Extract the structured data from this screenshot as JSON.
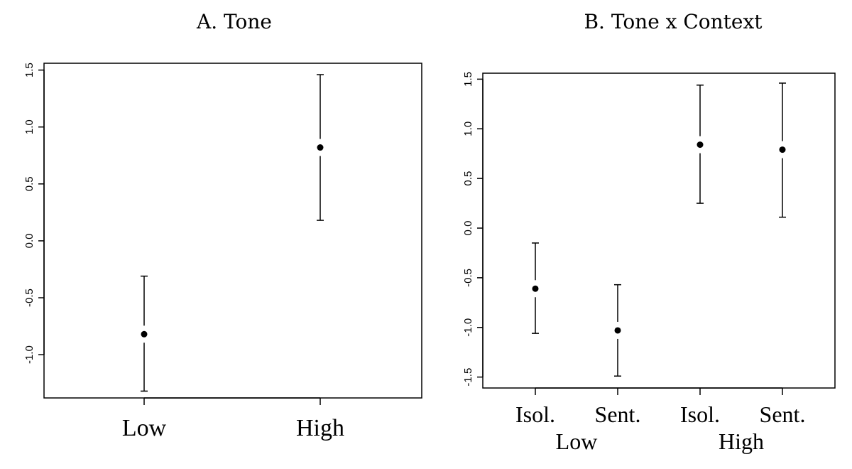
{
  "chart_data": [
    {
      "type": "scatter",
      "title": "A. Tone",
      "ylim": [
        -1.38,
        1.56
      ],
      "yticks": [
        "-1.0",
        "-0.5",
        "0.0",
        "0.5",
        "1.0",
        "1.5"
      ],
      "categories": [
        "Low",
        "High"
      ],
      "means": [
        -0.82,
        0.82
      ],
      "lower": [
        -1.32,
        0.18
      ],
      "upper": [
        -0.31,
        1.46
      ]
    },
    {
      "type": "scatter",
      "title": "B. Tone x Context",
      "ylim": [
        -1.61,
        1.56
      ],
      "yticks": [
        "-1.5",
        "-1.0",
        "-0.5",
        "0.0",
        "0.5",
        "1.0",
        "1.5"
      ],
      "categories": [
        "Isol.",
        "Sent.",
        "Isol.",
        "Sent."
      ],
      "groups": [
        "Low",
        "High"
      ],
      "means": [
        -0.61,
        -1.03,
        0.84,
        0.79
      ],
      "lower": [
        -1.06,
        -1.49,
        0.25,
        0.11
      ],
      "upper": [
        -0.15,
        -0.57,
        1.44,
        1.46
      ]
    }
  ]
}
